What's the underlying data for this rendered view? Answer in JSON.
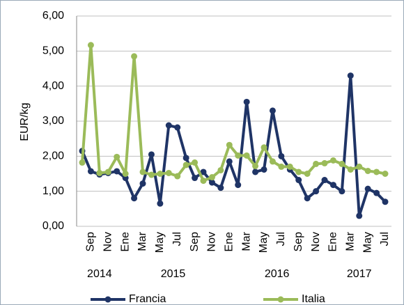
{
  "chart_data": {
    "type": "line",
    "y_label": "EUR/kg",
    "categories": [
      null,
      "Sep",
      null,
      "Nov",
      null,
      "Ene",
      null,
      "Mar",
      null,
      "May",
      null,
      "Jul",
      null,
      "Sep",
      null,
      "Nov",
      null,
      "Ene",
      null,
      "Mar",
      null,
      "May",
      null,
      "Jul",
      null,
      "Sep",
      null,
      "Nov",
      null,
      "Ene",
      null,
      "Mar",
      null,
      "May",
      null,
      "Jul"
    ],
    "x_groups": [
      "2014",
      "2015",
      "2016",
      "2017"
    ],
    "series": [
      {
        "name": "Francia",
        "color": "#1f3466",
        "values": [
          2.15,
          1.57,
          1.48,
          1.52,
          1.57,
          1.38,
          0.8,
          1.22,
          2.05,
          0.65,
          2.88,
          2.82,
          1.95,
          1.38,
          1.55,
          1.25,
          1.1,
          1.85,
          1.18,
          3.55,
          1.55,
          1.62,
          3.3,
          2.0,
          1.62,
          1.32,
          0.8,
          1.0,
          1.32,
          1.18,
          1.0,
          4.3,
          0.3,
          1.07,
          0.95,
          0.7
        ]
      },
      {
        "name": "Italia",
        "color": "#9bbb59",
        "values": [
          1.82,
          5.17,
          1.52,
          1.55,
          1.98,
          1.5,
          4.85,
          1.55,
          1.47,
          1.5,
          1.52,
          1.43,
          1.75,
          1.82,
          1.3,
          1.4,
          1.6,
          2.32,
          2.02,
          2.02,
          1.72,
          2.25,
          1.85,
          1.7,
          1.7,
          1.55,
          1.5,
          1.78,
          1.8,
          1.88,
          1.78,
          1.62,
          1.7,
          1.58,
          1.55,
          1.5
        ]
      }
    ],
    "ylim": [
      0,
      6
    ],
    "yticks": [
      {
        "value": 0,
        "label": "0,00"
      },
      {
        "value": 1,
        "label": "1,00"
      },
      {
        "value": 2,
        "label": "2,00"
      },
      {
        "value": 3,
        "label": "3,00"
      },
      {
        "value": 4,
        "label": "4,00"
      },
      {
        "value": 5,
        "label": "5,00"
      },
      {
        "value": 6,
        "label": "6,00"
      }
    ],
    "grid": true,
    "legend": "bottom"
  }
}
